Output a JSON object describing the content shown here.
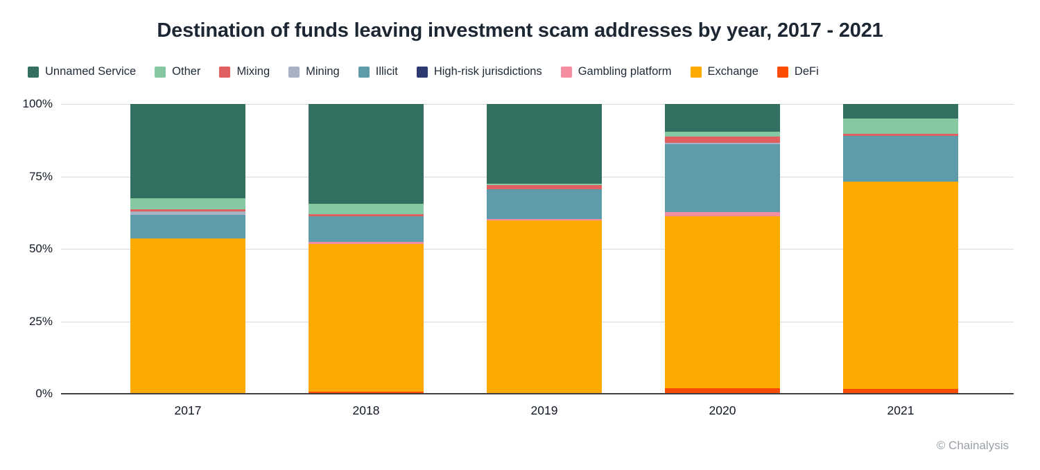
{
  "title": "Destination of funds leaving investment scam addresses by year, 2017 - 2021",
  "credit": "© Chainalysis",
  "axis": {
    "yticks": [
      "100%",
      "75%",
      "50%",
      "25%",
      "0%"
    ]
  },
  "chart_data": {
    "type": "bar",
    "stacked": true,
    "title": "Destination of funds leaving investment scam addresses by year, 2017 - 2021",
    "categories": [
      "2017",
      "2018",
      "2019",
      "2020",
      "2021"
    ],
    "ylabel": "",
    "ylim": [
      0,
      100
    ],
    "y_unit": "%",
    "grid": true,
    "legend_position": "top-left",
    "series": [
      {
        "name": "Unnamed Service",
        "color": "#347062",
        "values": [
          32.5,
          34.5,
          27.5,
          9.6,
          5.0
        ]
      },
      {
        "name": "Other",
        "color": "#85c8a2",
        "values": [
          3.8,
          3.5,
          0.5,
          1.7,
          5.3
        ]
      },
      {
        "name": "Mixing",
        "color": "#e06060",
        "values": [
          0.8,
          0.7,
          1.5,
          2.1,
          0.7
        ]
      },
      {
        "name": "Mining",
        "color": "#a9b1c4",
        "values": [
          1.2,
          0.0,
          0.0,
          0.5,
          0.0
        ]
      },
      {
        "name": "Illicit",
        "color": "#5f9cab",
        "values": [
          8.2,
          9.0,
          10.3,
          23.4,
          15.9
        ]
      },
      {
        "name": "High-risk jurisdictions",
        "color": "#2c3a70",
        "values": [
          0.0,
          0.0,
          0.0,
          0.0,
          0.0
        ]
      },
      {
        "name": "Gambling platform",
        "color": "#f48d9f",
        "values": [
          0.0,
          0.6,
          0.5,
          1.4,
          0.0
        ]
      },
      {
        "name": "Exchange",
        "color": "#feaa02",
        "values": [
          53.5,
          50.9,
          59.7,
          59.5,
          71.4
        ]
      },
      {
        "name": "DeFi",
        "color": "#fc4c02",
        "values": [
          0.0,
          0.8,
          0.0,
          1.8,
          1.7
        ]
      }
    ]
  }
}
